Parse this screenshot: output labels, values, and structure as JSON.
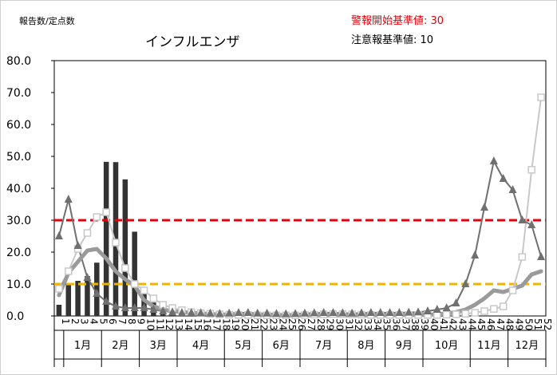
{
  "chart_data": {
    "type": "line",
    "title": "インフルエンザ",
    "ylabel": "報告数/定点数",
    "ylim": [
      0,
      80
    ],
    "yticks": [
      "0.0",
      "10.0",
      "20.0",
      "30.0",
      "40.0",
      "50.0",
      "60.0",
      "70.0",
      "80.0"
    ],
    "ytick_values": [
      0,
      10,
      20,
      30,
      40,
      50,
      60,
      70,
      80
    ],
    "x": [
      1,
      2,
      3,
      4,
      5,
      6,
      7,
      8,
      9,
      10,
      11,
      12,
      13,
      14,
      15,
      16,
      17,
      18,
      19,
      20,
      21,
      22,
      23,
      24,
      25,
      26,
      27,
      28,
      29,
      30,
      31,
      32,
      33,
      34,
      35,
      36,
      37,
      38,
      39,
      40,
      41,
      42,
      43,
      44,
      45,
      46,
      47,
      48,
      49,
      50,
      51,
      52
    ],
    "xtick_labels": [
      "1",
      "2",
      "3",
      "4",
      "5",
      "6",
      "7",
      "8",
      "9",
      "10",
      "11",
      "12",
      "13",
      "14",
      "15",
      "16",
      "17",
      "18",
      "19",
      "20",
      "21",
      "22",
      "23",
      "24",
      "25",
      "26",
      "27",
      "28",
      "29",
      "30",
      "31",
      "32",
      "33",
      "34",
      "35",
      "36",
      "37",
      "38",
      "39",
      "40",
      "41",
      "42",
      "43",
      "44",
      "45",
      "46",
      "47",
      "48",
      "49",
      "50",
      "51",
      "52"
    ],
    "months": [
      {
        "label": "1月",
        "start": 1,
        "end": 5
      },
      {
        "label": "2月",
        "start": 5,
        "end": 9
      },
      {
        "label": "3月",
        "start": 9,
        "end": 13
      },
      {
        "label": "4月",
        "start": 13,
        "end": 18
      },
      {
        "label": "5月",
        "start": 18,
        "end": 22
      },
      {
        "label": "6月",
        "start": 22,
        "end": 26
      },
      {
        "label": "7月",
        "start": 26,
        "end": 31
      },
      {
        "label": "8月",
        "start": 31,
        "end": 35
      },
      {
        "label": "9月",
        "start": 35,
        "end": 39
      },
      {
        "label": "10月",
        "start": 39,
        "end": 44
      },
      {
        "label": "11月",
        "start": 44,
        "end": 48
      },
      {
        "label": "12月",
        "start": 48,
        "end": 52
      }
    ],
    "thresholds": [
      {
        "label": "警報開始基準値: 30",
        "value": 30,
        "color": "#e8000b"
      },
      {
        "label": "注意報基準値: 10",
        "value": 10,
        "color": "#f0b400"
      }
    ],
    "series": [
      {
        "kind": "bar",
        "color": "#333333",
        "values": [
          3.5,
          10.3,
          11.0,
          12.5,
          16.7,
          48.3,
          48.2,
          42.8,
          26.4,
          8.2,
          4.2,
          2.2,
          1.4,
          0.8,
          0.6,
          0.3,
          0.2,
          0.1,
          0.1,
          0.1,
          0.0,
          0.0,
          0.0,
          0.0,
          0.0,
          0.0,
          0.0,
          0.0,
          0.0,
          0.0,
          0.0,
          0.0,
          0.0,
          0.0,
          0.0,
          0.0,
          0.0,
          0.0,
          0.0,
          0.0,
          0.0,
          0.0,
          0.0,
          0.0,
          0.0,
          0.0,
          0.0,
          0.0,
          0.0,
          0.0,
          0.0,
          0.0
        ]
      },
      {
        "kind": "line",
        "marker": "square",
        "color": "#c8c8c8",
        "values": [
          8.5,
          14.0,
          21.0,
          26.0,
          31.0,
          32.5,
          23.0,
          15.0,
          10.0,
          8.0,
          5.5,
          3.5,
          2.5,
          1.8,
          1.2,
          0.9,
          0.7,
          0.5,
          0.4,
          0.3,
          0.3,
          0.2,
          0.2,
          0.2,
          0.2,
          0.2,
          0.3,
          0.4,
          0.5,
          0.6,
          0.6,
          0.5,
          0.4,
          0.3,
          0.3,
          0.3,
          0.3,
          0.3,
          0.3,
          0.3,
          0.3,
          0.4,
          0.5,
          0.7,
          1.0,
          1.5,
          2.2,
          3.0,
          8.0,
          18.5,
          45.8,
          68.5
        ]
      },
      {
        "kind": "line",
        "marker": "triangle",
        "color": "#707070",
        "values": [
          25.0,
          36.5,
          22.0,
          12.0,
          7.0,
          4.5,
          3.0,
          2.5,
          2.5,
          2.5,
          2.0,
          1.5,
          1.2,
          1.0,
          1.0,
          0.9,
          0.8,
          0.7,
          0.8,
          1.0,
          1.0,
          0.8,
          0.8,
          0.7,
          0.6,
          0.7,
          0.8,
          0.9,
          1.0,
          1.0,
          0.9,
          0.8,
          0.9,
          1.0,
          1.0,
          1.0,
          1.0,
          1.1,
          1.2,
          1.5,
          2.0,
          2.5,
          4.0,
          10.0,
          19.0,
          34.0,
          48.5,
          43.0,
          39.5,
          30.0,
          28.5,
          18.5
        ]
      },
      {
        "kind": "line",
        "marker": "none",
        "color": "#9a9a9a",
        "width": 5,
        "values": [
          6.5,
          13.5,
          17.0,
          20.5,
          21.0,
          18.0,
          14.0,
          11.5,
          9.5,
          5.0,
          3.0,
          2.0,
          1.5,
          1.2,
          1.0,
          0.8,
          0.6,
          0.5,
          0.4,
          0.3,
          0.3,
          0.3,
          0.3,
          0.2,
          0.2,
          0.2,
          0.2,
          0.2,
          0.2,
          0.2,
          0.2,
          0.2,
          0.2,
          0.2,
          0.2,
          0.2,
          0.3,
          0.3,
          0.3,
          0.4,
          0.5,
          0.8,
          1.2,
          2.0,
          3.5,
          5.5,
          8.0,
          7.5,
          8.5,
          9.5,
          13.0,
          14.0
        ]
      }
    ]
  }
}
